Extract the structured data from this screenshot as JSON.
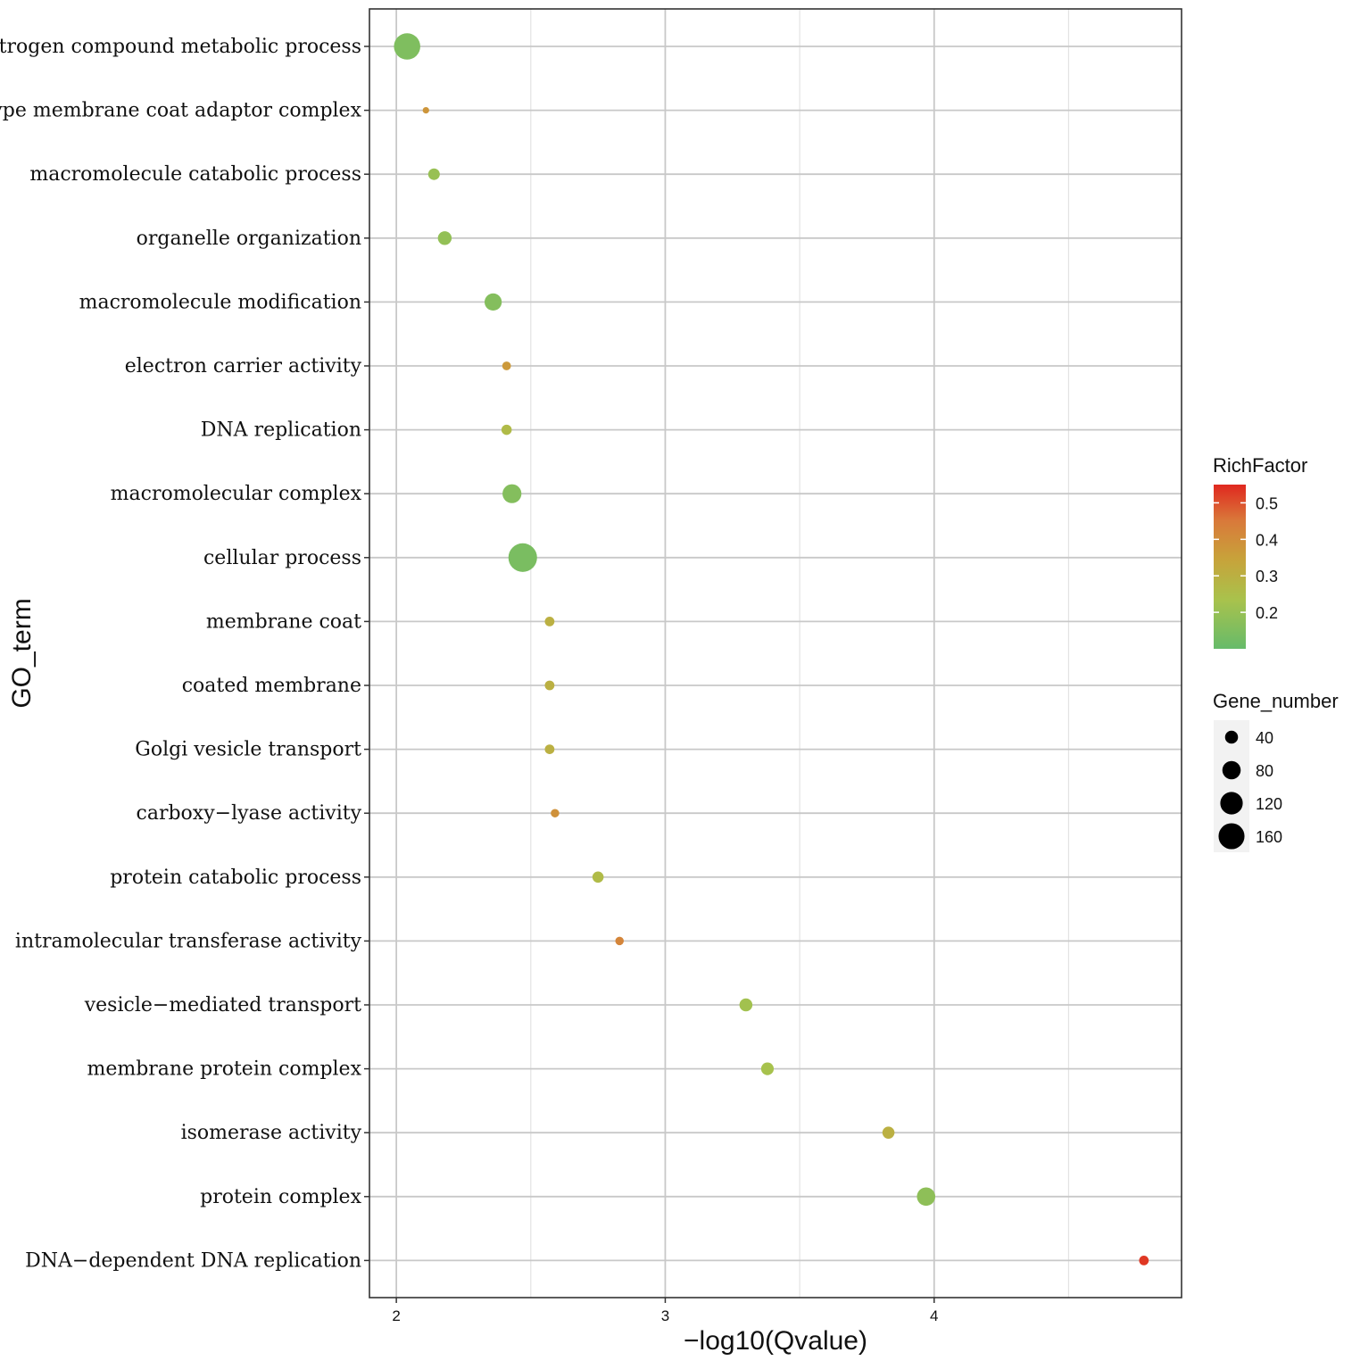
{
  "chart_data": {
    "type": "scatter",
    "subtype": "bubble",
    "xlabel": "−log10(Qvalue)",
    "ylabel": "GO_term",
    "xlim": [
      1.9,
      4.92
    ],
    "xticks": [
      "2",
      "3",
      "4"
    ],
    "xtick_values": [
      2,
      3,
      4
    ],
    "grid": true,
    "points": [
      {
        "term": "nitrogen compound metabolic process",
        "x": 2.04,
        "gene_number": 165,
        "rich_factor": 0.15
      },
      {
        "term": "AP−type membrane coat adaptor complex",
        "x": 2.11,
        "gene_number": 10,
        "rich_factor": 0.38
      },
      {
        "term": "macromolecule catabolic process",
        "x": 2.14,
        "gene_number": 32,
        "rich_factor": 0.2
      },
      {
        "term": "organelle organization",
        "x": 2.18,
        "gene_number": 45,
        "rich_factor": 0.19
      },
      {
        "term": "macromolecule modification",
        "x": 2.36,
        "gene_number": 70,
        "rich_factor": 0.16
      },
      {
        "term": "electron carrier activity",
        "x": 2.41,
        "gene_number": 18,
        "rich_factor": 0.37
      },
      {
        "term": "DNA replication",
        "x": 2.41,
        "gene_number": 25,
        "rich_factor": 0.26
      },
      {
        "term": "macromolecular complex",
        "x": 2.43,
        "gene_number": 85,
        "rich_factor": 0.16
      },
      {
        "term": "cellular process",
        "x": 2.47,
        "gene_number": 195,
        "rich_factor": 0.14
      },
      {
        "term": "membrane coat",
        "x": 2.57,
        "gene_number": 22,
        "rich_factor": 0.3
      },
      {
        "term": "coated membrane",
        "x": 2.57,
        "gene_number": 22,
        "rich_factor": 0.3
      },
      {
        "term": "Golgi vesicle transport",
        "x": 2.57,
        "gene_number": 22,
        "rich_factor": 0.3
      },
      {
        "term": "carboxy−lyase activity",
        "x": 2.59,
        "gene_number": 17,
        "rich_factor": 0.39
      },
      {
        "term": "protein catabolic process",
        "x": 2.75,
        "gene_number": 30,
        "rich_factor": 0.26
      },
      {
        "term": "intramolecular transferase activity",
        "x": 2.83,
        "gene_number": 17,
        "rich_factor": 0.42
      },
      {
        "term": "vesicle−mediated transport",
        "x": 3.3,
        "gene_number": 40,
        "rich_factor": 0.22
      },
      {
        "term": "membrane protein complex",
        "x": 3.38,
        "gene_number": 38,
        "rich_factor": 0.23
      },
      {
        "term": "isomerase activity",
        "x": 3.83,
        "gene_number": 35,
        "rich_factor": 0.3
      },
      {
        "term": "protein complex",
        "x": 3.97,
        "gene_number": 80,
        "rich_factor": 0.18
      },
      {
        "term": "DNA−dependent DNA replication",
        "x": 4.78,
        "gene_number": 22,
        "rich_factor": 0.53
      }
    ],
    "legend": {
      "color_title": "RichFactor",
      "color_ticks": [
        "0.5",
        "0.4",
        "0.3",
        "0.2"
      ],
      "color_tick_values": [
        0.5,
        0.4,
        0.3,
        0.2
      ],
      "color_range": [
        0.1,
        0.55
      ],
      "color_stops": [
        "#66bb6a",
        "#a9c24c",
        "#c8a23a",
        "#d9793a",
        "#e0281f"
      ],
      "size_title": "Gene_number",
      "size_labels": [
        "40",
        "80",
        "120",
        "160"
      ],
      "size_values": [
        40,
        80,
        120,
        160
      ],
      "placement": "right"
    }
  }
}
